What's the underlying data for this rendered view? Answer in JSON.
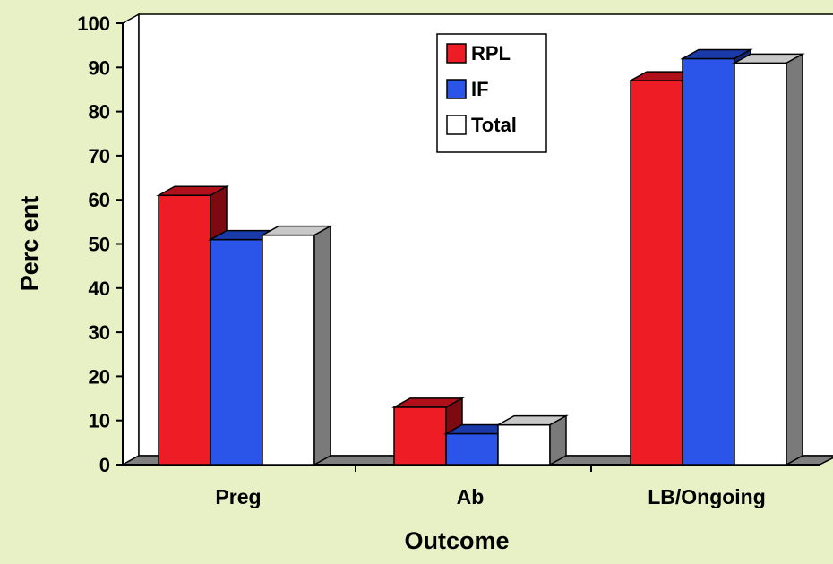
{
  "chart_data": {
    "type": "bar",
    "title": "",
    "xlabel": "Outcome",
    "ylabel": "Perc ent",
    "ylim": [
      0,
      100
    ],
    "yticks": [
      0,
      10,
      20,
      30,
      40,
      50,
      60,
      70,
      80,
      90,
      100
    ],
    "categories": [
      "Preg",
      "Ab",
      "LB/Ongoing"
    ],
    "series": [
      {
        "name": "RPL",
        "color": "#ee1c25",
        "values": [
          61,
          13,
          87
        ]
      },
      {
        "name": "IF",
        "color": "#2b55e8",
        "values": [
          51,
          7,
          92
        ]
      },
      {
        "name": "Total",
        "color": "#ffffff",
        "values": [
          52,
          9,
          91
        ]
      }
    ],
    "legend_position": "top-center",
    "grid": false,
    "style": "3d",
    "background_color": "#e8f0c6",
    "plot_color": "#ffffff"
  }
}
